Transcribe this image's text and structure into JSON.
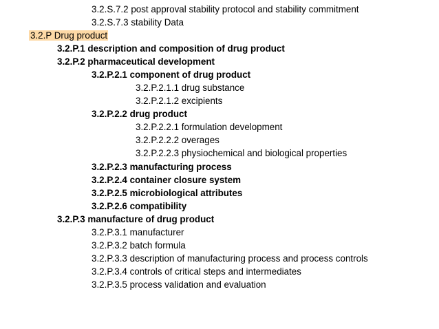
{
  "outline": {
    "items": [
      {
        "text": "3.2.S.7.2  post approval stability protocol and stability commitment"
      },
      {
        "text": "3.2.S.7.3  stability Data"
      },
      {
        "text": "3.2.P Drug product"
      },
      {
        "text": "3.2.P.1  description and composition of drug product"
      },
      {
        "text": "3.2.P.2  pharmaceutical development"
      },
      {
        "text": "3.2.P.2.1  component of drug product"
      },
      {
        "text": "3.2.P.2.1.1 drug substance"
      },
      {
        "text": "3.2.P.2.1.2  excipients"
      },
      {
        "text": "3.2.P.2.2  drug product"
      },
      {
        "text": "3.2.P.2.2.1  formulation development"
      },
      {
        "text": "3.2.P.2.2.2  overages"
      },
      {
        "text": "3.2.P.2.2.3  physiochemical and biological properties"
      },
      {
        "text": "3.2.P.2.3  manufacturing process"
      },
      {
        "text": "3.2.P.2.4 container closure system"
      },
      {
        "text": "3.2.P.2.5  microbiological attributes"
      },
      {
        "text": "3.2.P.2.6  compatibility"
      },
      {
        "text": "3.2.P.3  manufacture of drug product"
      },
      {
        "text": "3.2.P.3.1  manufacturer"
      },
      {
        "text": "3.2.P.3.2  batch formula"
      },
      {
        "text": "3.2.P.3.3  description of manufacturing process and process controls"
      },
      {
        "text": "3.2.P.3.4  controls of critical steps and intermediates"
      },
      {
        "text": "3.2.P.3.5  process validation and evaluation"
      }
    ]
  },
  "colors": {
    "highlight": "#fdd9a6",
    "text": "#000000",
    "background": "#ffffff"
  }
}
